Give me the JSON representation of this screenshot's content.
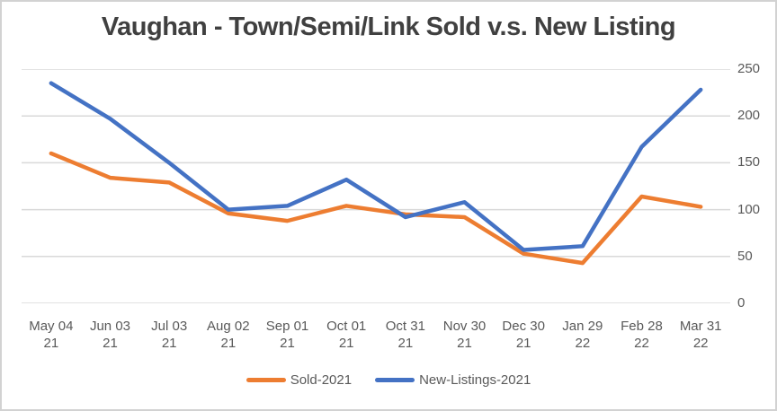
{
  "window": {
    "background": "#ffffff",
    "border_color": "#d2d2d2"
  },
  "chart_data": {
    "type": "line",
    "title": "Vaughan - Town/Semi/Link Sold v.s. New Listing",
    "categories": [
      "May 04 21",
      "Jun 03 21",
      "Jul 03 21",
      "Aug 02 21",
      "Sep 01 21",
      "Oct 01 21",
      "Oct 31 21",
      "Nov 30 21",
      "Dec 30 21",
      "Jan 29 22",
      "Feb 28 22",
      "Mar 31 22"
    ],
    "series": [
      {
        "name": "Sold-2021",
        "color": "#ED7D31",
        "values": [
          160,
          134,
          129,
          96,
          88,
          104,
          95,
          92,
          53,
          43,
          114,
          103
        ]
      },
      {
        "name": "New-Listings-2021",
        "color": "#4472C4",
        "values": [
          235,
          197,
          150,
          100,
          104,
          132,
          92,
          108,
          57,
          61,
          167,
          228
        ]
      }
    ],
    "y_axis": {
      "min": 0,
      "max": 250,
      "tick_step": 50,
      "ticks": [
        250,
        200,
        150,
        100,
        50,
        0
      ],
      "side": "right"
    },
    "x_axis": {
      "label_lines": 2
    },
    "grid": true,
    "gridline_color": "#d9d9d9",
    "legend_position": "bottom",
    "title_color": "#404040",
    "text_color": "#595959"
  }
}
